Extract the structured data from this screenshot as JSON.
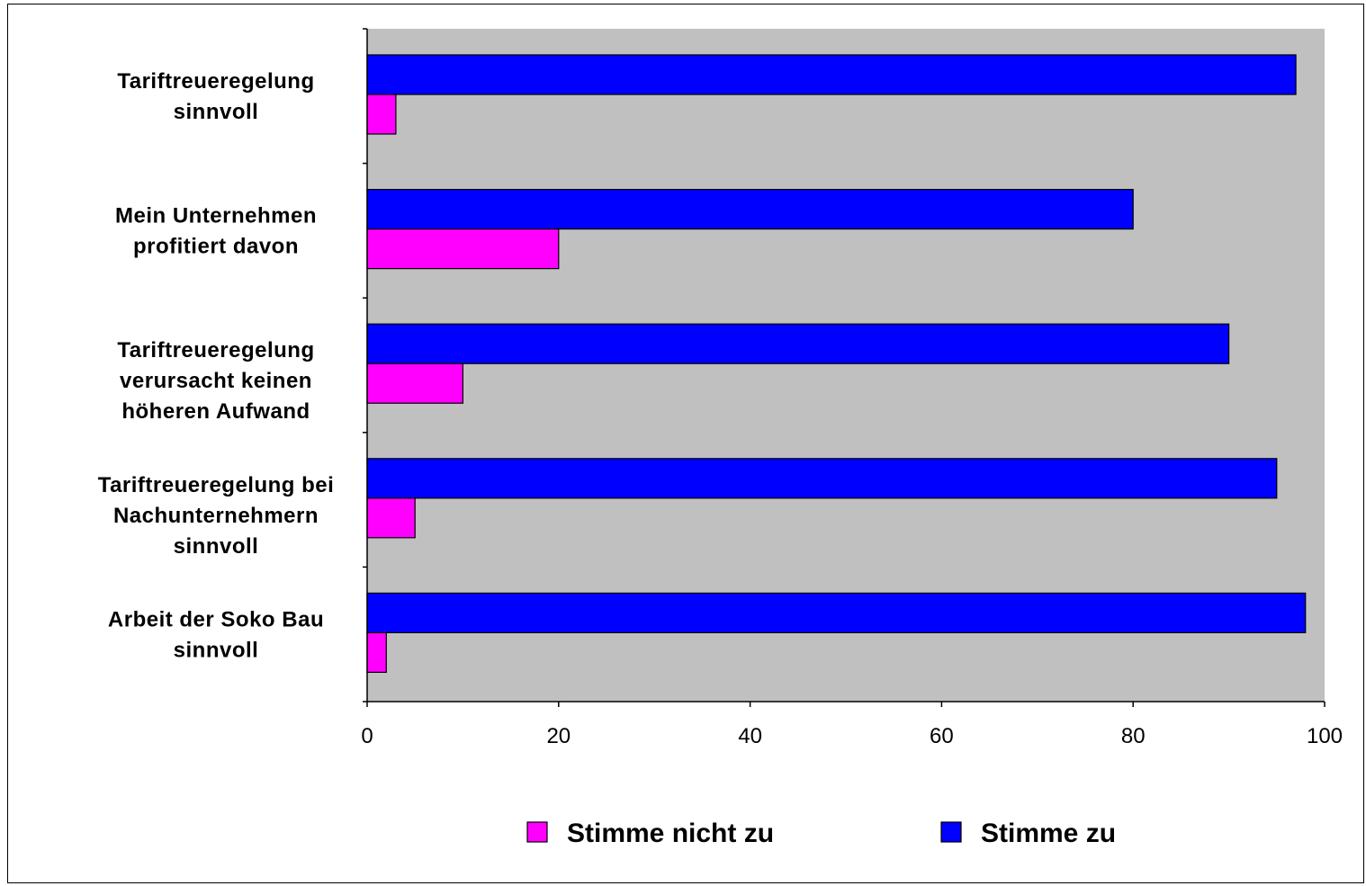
{
  "chart_data": {
    "type": "bar",
    "orientation": "horizontal",
    "categories": [
      [
        "Tariftreueregelung",
        "sinnvoll"
      ],
      [
        "Mein Unternehmen",
        "profitiert davon"
      ],
      [
        "Tariftreueregelung",
        "verursacht keinen",
        "höheren Aufwand"
      ],
      [
        "Tariftreueregelung bei",
        "Nachunternehmern",
        "sinnvoll"
      ],
      [
        "Arbeit der Soko  Bau",
        "sinnvoll"
      ]
    ],
    "series": [
      {
        "name": "Stimme zu",
        "color": "#0000ff",
        "values": [
          97,
          80,
          90,
          95,
          98
        ]
      },
      {
        "name": "Stimme nicht zu",
        "color": "#ff00ff",
        "values": [
          3,
          20,
          10,
          5,
          2
        ]
      }
    ],
    "xlim": [
      0,
      100
    ],
    "xticks": [
      "0",
      "20",
      "40",
      "60",
      "80",
      "100"
    ],
    "legend": {
      "placement": "bottom",
      "order": [
        "Stimme nicht zu",
        "Stimme zu"
      ]
    },
    "plot_background": "#c0c0c0",
    "grid": false
  }
}
